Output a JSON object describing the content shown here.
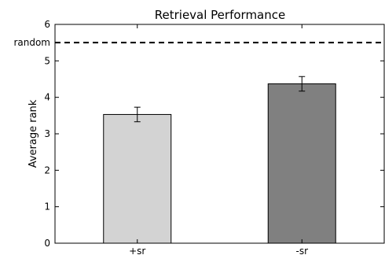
{
  "chart_data": {
    "type": "bar",
    "title": "Retrieval Performance",
    "xlabel": "",
    "ylabel": "Average rank",
    "categories": [
      "+sr",
      "-sr"
    ],
    "values": [
      3.53,
      4.37
    ],
    "errors": [
      0.2,
      0.2
    ],
    "bar_colors": [
      "#d3d3d3",
      "#808080"
    ],
    "ylim": [
      0,
      6
    ],
    "yticks": [
      0,
      1,
      2,
      3,
      4,
      5,
      6
    ],
    "grid": false,
    "reference_line": {
      "label": "random",
      "value": 5.5,
      "style": "dashed"
    }
  }
}
